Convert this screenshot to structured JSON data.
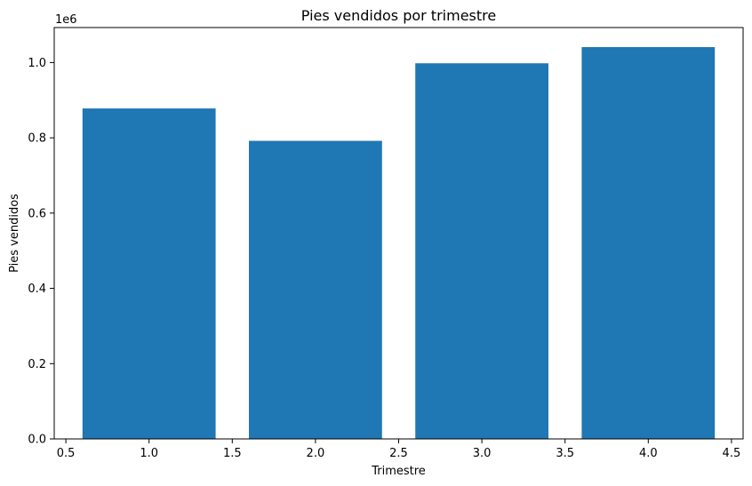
{
  "chart_data": {
    "type": "bar",
    "title": "Pies vendidos por trimestre",
    "xlabel": "Trimestre",
    "ylabel": "Pies vendidos",
    "y_offset_label": "1e6",
    "x": [
      1,
      2,
      3,
      4
    ],
    "values": [
      878000,
      792000,
      998000,
      1041000
    ],
    "bar_width": 0.8,
    "xlim": [
      0.43,
      4.57
    ],
    "ylim": [
      0,
      1093000
    ],
    "x_ticks": [
      0.5,
      1.0,
      1.5,
      2.0,
      2.5,
      3.0,
      3.5,
      4.0,
      4.5
    ],
    "x_tick_labels": [
      "0.5",
      "1.0",
      "1.5",
      "2.0",
      "2.5",
      "3.0",
      "3.5",
      "4.0",
      "4.5"
    ],
    "y_ticks": [
      0,
      200000,
      400000,
      600000,
      800000,
      1000000
    ],
    "y_tick_labels": [
      "0.0",
      "0.2",
      "0.4",
      "0.6",
      "0.8",
      "1.0"
    ],
    "bar_color": "#1f77b4",
    "grid": false,
    "legend": false
  }
}
